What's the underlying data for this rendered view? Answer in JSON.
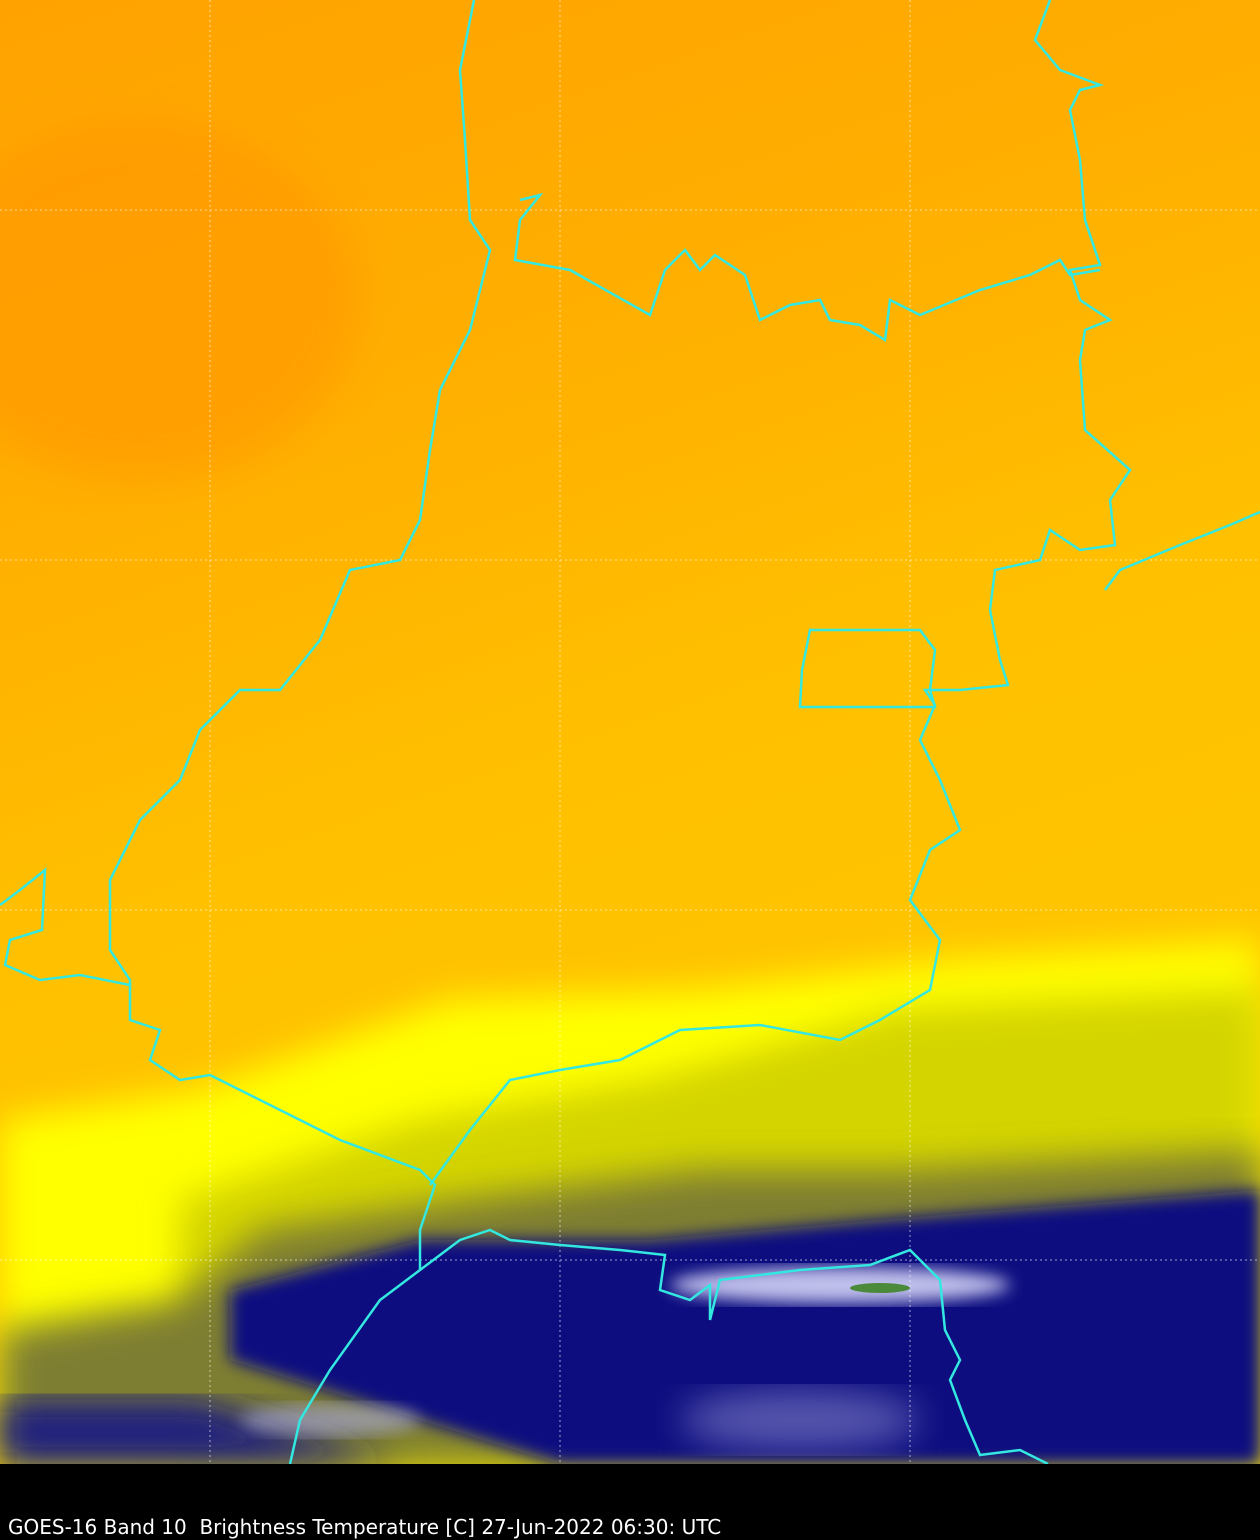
{
  "caption": "GOES-16 Band 10  Brightness Temperature [C] 27-Jun-2022 06:30: UTC"
}
